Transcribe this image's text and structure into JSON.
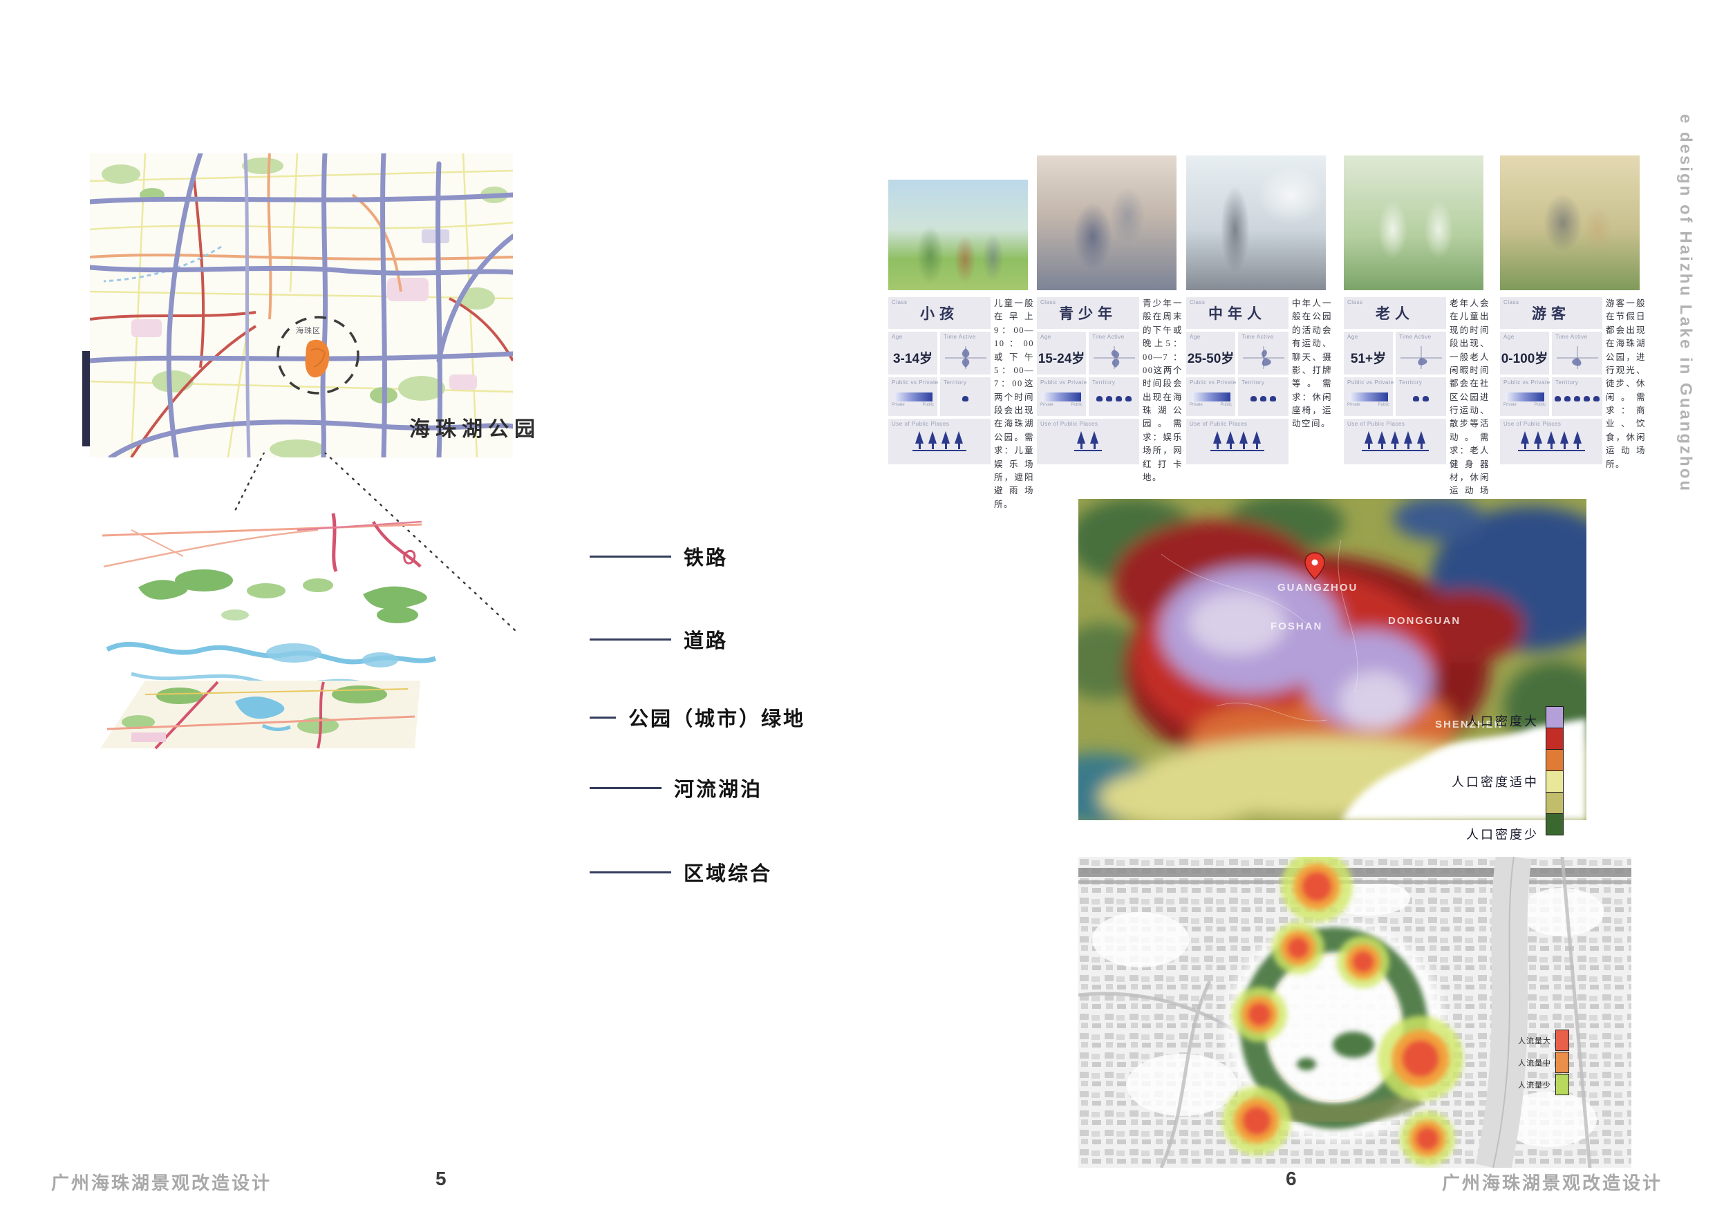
{
  "page": {
    "footer_left": "广州海珠湖景观改造设计",
    "footer_right": "广州海珠湖景观改造设计",
    "page_number_left": "5",
    "page_number_right": "6",
    "side_text": "e design of Haizhu Lake in Guangzhou"
  },
  "left_page": {
    "map": {
      "park_label": "海珠湖公园",
      "district_label": "海珠区"
    },
    "legend": [
      {
        "label": "铁路"
      },
      {
        "label": "道路"
      },
      {
        "label": "公园（城市）绿地"
      },
      {
        "label": "河流湖泊"
      },
      {
        "label": "区域综合"
      }
    ]
  },
  "right_page": {
    "card_labels": {
      "class": "Class",
      "age": "Age",
      "time": "Time Active",
      "pvp": "Public vs Private",
      "private": "Private",
      "public": "Public",
      "territory": "Territory",
      "places": "Use of Public Places"
    },
    "profiles": [
      {
        "title": "小孩",
        "age": "3-14岁",
        "territory": 1,
        "trees": 4,
        "description": "儿童一般在早上9：00—10：00或下午5：00—7：00这两个时间段会出现在海珠湖公园。需求：儿童娱乐场所，遮阳避雨场所。"
      },
      {
        "title": "青少年",
        "age": "15-24岁",
        "territory": 4,
        "trees": 2,
        "description": "青少年一般在周末的下午或晚上5：00—7：00这两个时间段会出现在海珠湖公园。需求：娱乐场所，网红打卡地。"
      },
      {
        "title": "中年人",
        "age": "25-50岁",
        "territory": 3,
        "trees": 4,
        "description": "中年人一般在公园的活动会有运动、聊天、摄影、打牌等。需求：休闲座椅，运动空间。"
      },
      {
        "title": "老人",
        "age": "51+岁",
        "territory": 2,
        "trees": 5,
        "description": "老年人会在儿童出现的时间段出现、一般老人闲暇时间都会在社区公园进行运动、散步等活动。需求：老人健身器材，休闲运动场所。"
      },
      {
        "title": "游客",
        "age": "0-100岁",
        "territory": 5,
        "trees": 5,
        "description": "游客一般在节假日都会出现在海珠湖公园，进行观光、徒步、休闲。需求：商业、饮食，休闲运动场所。"
      }
    ],
    "density_map": {
      "cities": [
        "GUANGZHOU",
        "FOSHAN",
        "DONGGUAN",
        "SHENZHEN"
      ],
      "legend_labels": [
        "人口密度大",
        "人口密度适中",
        "人口密度少"
      ],
      "swatch_colors": [
        "#b49fd8",
        "#c22d26",
        "#e07b35",
        "#e9e79a",
        "#c2bd6a",
        "#3a682f"
      ]
    },
    "flow_map": {
      "legend": [
        {
          "label": "人流量大",
          "color": "#e8604a"
        },
        {
          "label": "人流量中",
          "color": "#ea8f4a"
        },
        {
          "label": "人流量少",
          "color": "#b8d95e"
        }
      ]
    }
  }
}
